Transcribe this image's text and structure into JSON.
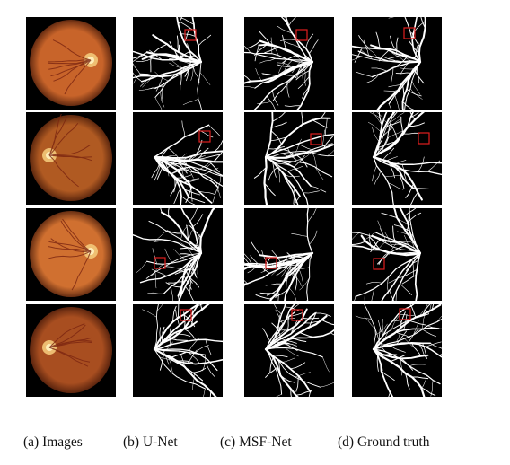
{
  "figure": {
    "captions": [
      "(a) Images",
      "(b) U-Net",
      "(c) MSF-Net",
      "(d) Ground truth"
    ],
    "highlight_color": "#e01e1e",
    "rows": [
      {
        "fundus": {
          "disc_side": "right",
          "tone": "#c8642a"
        }
      },
      {
        "fundus": {
          "disc_side": "left",
          "tone": "#b05a22"
        }
      },
      {
        "fundus": {
          "disc_side": "right",
          "tone": "#d07030"
        }
      },
      {
        "fundus": {
          "disc_side": "left",
          "tone": "#a84e20"
        }
      }
    ]
  }
}
